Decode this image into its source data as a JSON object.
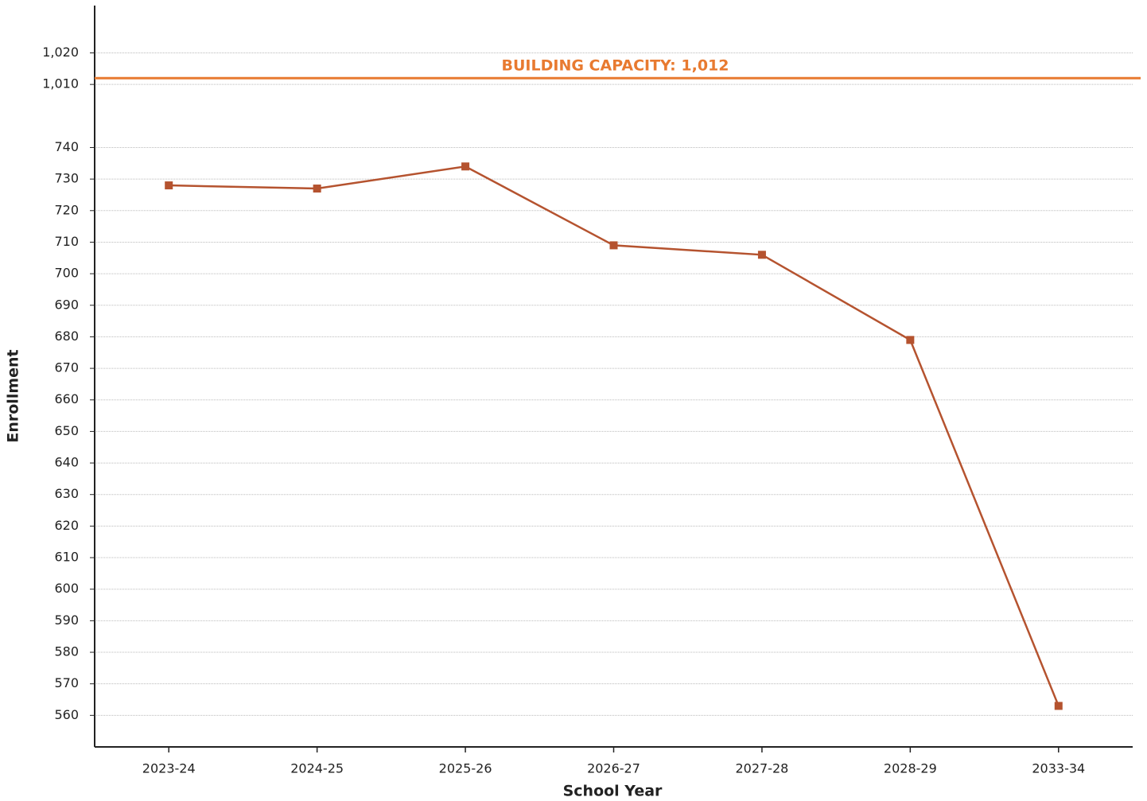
{
  "chart_data": {
    "type": "line",
    "categories": [
      "2023-24",
      "2024-25",
      "2025-26",
      "2026-27",
      "2027-28",
      "2028-29",
      "2033-34"
    ],
    "series": [
      {
        "name": "Enrollment",
        "color": "#b5532f",
        "values": [
          728,
          727,
          734,
          709,
          706,
          679,
          563
        ]
      }
    ],
    "ylim": [
      550,
      1035
    ],
    "ybreak": [
      750,
      1000
    ],
    "yticks": [
      560,
      570,
      580,
      590,
      600,
      610,
      620,
      630,
      640,
      650,
      660,
      670,
      680,
      690,
      700,
      710,
      720,
      730,
      740,
      {
        "value": 1010,
        "label": "1,010"
      },
      {
        "value": 1020,
        "label": "1,020"
      }
    ],
    "grid": true,
    "xlabel": "School Year",
    "ylabel": "Enrollment",
    "reference_line": {
      "label": "BUILDING CAPACITY: 1,012",
      "value": 1012,
      "color": "#e87a30"
    }
  }
}
